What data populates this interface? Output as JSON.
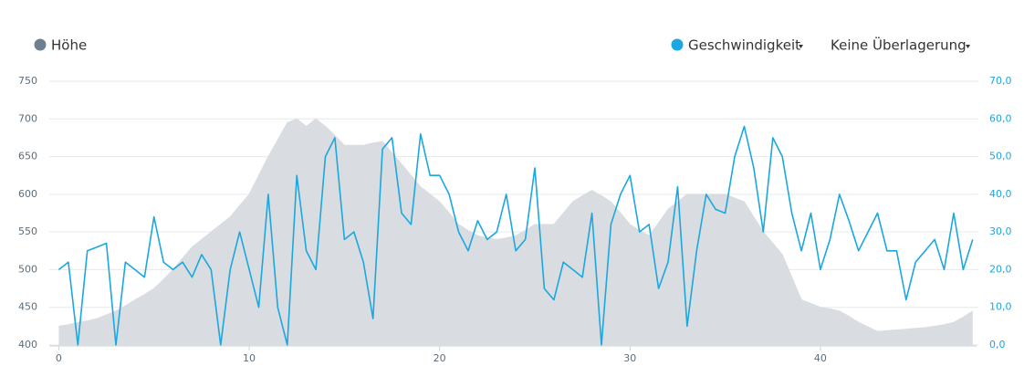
{
  "chart_data": {
    "type": "line",
    "legend_position": "top",
    "overlay_menu": "Keine Überlagerung",
    "x": [
      0,
      0.5,
      1,
      1.5,
      2,
      2.5,
      3,
      3.5,
      4,
      4.5,
      5,
      5.5,
      6,
      6.5,
      7,
      7.5,
      8,
      8.5,
      9,
      9.5,
      10,
      10.5,
      11,
      11.5,
      12,
      12.5,
      13,
      13.5,
      14,
      14.5,
      15,
      15.5,
      16,
      16.5,
      17,
      17.5,
      18,
      18.5,
      19,
      19.5,
      20,
      20.5,
      21,
      21.5,
      22,
      22.5,
      23,
      23.5,
      24,
      24.5,
      25,
      25.5,
      26,
      26.5,
      27,
      27.5,
      28,
      28.5,
      29,
      29.5,
      30,
      30.5,
      31,
      31.5,
      32,
      32.5,
      33,
      33.5,
      34,
      34.5,
      35,
      35.5,
      36,
      36.5,
      37,
      37.5,
      38,
      38.5,
      39,
      39.5,
      40,
      40.5,
      41,
      41.5,
      42,
      42.5,
      43,
      43.5,
      44,
      44.5,
      45,
      45.5,
      46,
      46.5,
      47,
      47.5,
      48
    ],
    "xlim": [
      -0.5,
      48.2
    ],
    "xticks": [
      0,
      10,
      20,
      30,
      40
    ],
    "ylim": [
      400,
      750
    ],
    "yticks": [
      400,
      450,
      500,
      550,
      600,
      650,
      700,
      750
    ],
    "y2lim": [
      0,
      70
    ],
    "y2ticks": [
      {
        "value": 0,
        "label": "0,0"
      },
      {
        "value": 10,
        "label": "10,0"
      },
      {
        "value": 20,
        "label": "20,0"
      },
      {
        "value": 30,
        "label": "30,0"
      },
      {
        "value": 40,
        "label": "40,0"
      },
      {
        "value": 50,
        "label": "50,0"
      },
      {
        "value": 60,
        "label": "60,0"
      },
      {
        "value": 70,
        "label": "70,0"
      }
    ],
    "grid": true,
    "series": [
      {
        "name": "Höhe",
        "color": "#6e7f8f",
        "fill": "#d9dde1",
        "style": "area",
        "values": [
          425,
          427,
          430,
          432,
          435,
          440,
          445,
          452,
          460,
          467,
          475,
          487,
          500,
          515,
          530,
          540,
          550,
          560,
          570,
          585,
          600,
          625,
          650,
          672,
          695,
          700,
          690,
          700,
          690,
          678,
          665,
          665,
          665,
          668,
          670,
          655,
          640,
          625,
          610,
          600,
          590,
          575,
          560,
          552,
          545,
          542,
          540,
          542,
          545,
          552,
          560,
          560,
          560,
          575,
          590,
          598,
          605,
          598,
          590,
          575,
          560,
          552,
          545,
          562,
          580,
          590,
          600,
          600,
          600,
          600,
          600,
          595,
          590,
          570,
          550,
          535,
          520,
          490,
          460,
          455,
          450,
          448,
          445,
          438,
          430,
          424,
          418,
          419,
          420,
          421,
          422,
          423,
          425,
          427,
          430,
          437,
          445
        ]
      },
      {
        "name": "Geschwindigkeit",
        "color": "#1ba7e0",
        "style": "line",
        "axis": "y2",
        "values": [
          20,
          22,
          0,
          25,
          26,
          27,
          0,
          22,
          20,
          18,
          34,
          22,
          20,
          22,
          18,
          24,
          20,
          0,
          20,
          30,
          20,
          10,
          40,
          10,
          0,
          45,
          25,
          20,
          50,
          55,
          28,
          30,
          22,
          7,
          52,
          55,
          35,
          32,
          56,
          45,
          45,
          40,
          30,
          25,
          33,
          28,
          30,
          40,
          25,
          28,
          47,
          15,
          12,
          22,
          20,
          18,
          35,
          0,
          32,
          40,
          45,
          30,
          32,
          15,
          22,
          42,
          5,
          25,
          40,
          36,
          35,
          50,
          58,
          47,
          30,
          55,
          50,
          35,
          25,
          35,
          20,
          28,
          40,
          33,
          25,
          30,
          35,
          25,
          25,
          12,
          22,
          25,
          28,
          20,
          35,
          20,
          28
        ]
      }
    ]
  }
}
